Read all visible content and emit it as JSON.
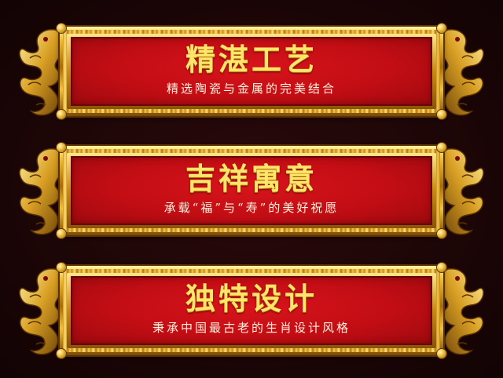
{
  "plaques": [
    {
      "title": "精湛工艺",
      "subtitle": "精选陶瓷与金属的完美结合"
    },
    {
      "title": "吉祥寓意",
      "subtitle": "承载“福”与“寿”的美好祝愿"
    },
    {
      "title": "独特设计",
      "subtitle": "秉承中国最古老的生肖设计风格"
    }
  ],
  "colors": {
    "background": "#1e0607",
    "panel_red": "#c20d14",
    "gold": "#e8b22a",
    "title_yellow": "#ffe66a",
    "subtitle_white": "#fff6e0"
  },
  "icons": {
    "ornament": "golden-dragon-icon"
  }
}
